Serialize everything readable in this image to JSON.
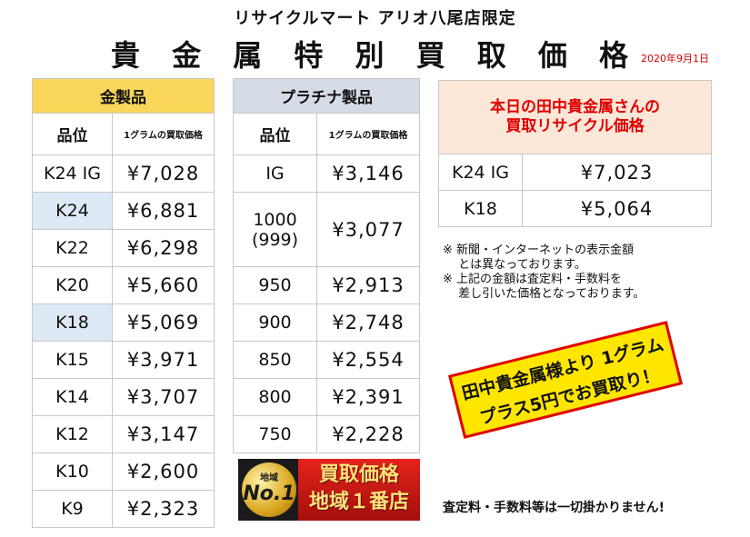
{
  "header": {
    "store_name": "リサイクルマート アリオ八尾店限定",
    "title": "貴 金 属 特 別 買 取 価 格",
    "date": "2020年9月1日"
  },
  "gold": {
    "category": "金製品",
    "col_grade": "品位",
    "col_price": "1グラムの買取価格",
    "rows": [
      {
        "grade": "K24 IG",
        "price": "¥7,028"
      },
      {
        "grade": "K24",
        "price": "¥6,881"
      },
      {
        "grade": "K22",
        "price": "¥6,298"
      },
      {
        "grade": "K20",
        "price": "¥5,660"
      },
      {
        "grade": "K18",
        "price": "¥5,069"
      },
      {
        "grade": "K15",
        "price": "¥3,971"
      },
      {
        "grade": "K14",
        "price": "¥3,707"
      },
      {
        "grade": "K12",
        "price": "¥3,147"
      },
      {
        "grade": "K10",
        "price": "¥2,600"
      },
      {
        "grade": "K9",
        "price": "¥2,323"
      }
    ],
    "highlight_color": "#dde9f5"
  },
  "platinum": {
    "category": "プラチナ製品",
    "col_grade": "品位",
    "col_price": "1グラムの買取価格",
    "rows": [
      {
        "grade": "IG",
        "price": "¥3,146"
      },
      {
        "grade": "1000",
        "grade_sub": "(999)",
        "price": "¥3,077"
      },
      {
        "grade": "950",
        "price": "¥2,913"
      },
      {
        "grade": "900",
        "price": "¥2,748"
      },
      {
        "grade": "850",
        "price": "¥2,554"
      },
      {
        "grade": "800",
        "price": "¥2,391"
      },
      {
        "grade": "750",
        "price": "¥2,228"
      }
    ]
  },
  "tanaka": {
    "title_line1": "本日の田中貴金属さんの",
    "title_line2": "買取リサイクル価格",
    "rows": [
      {
        "grade": "K24 IG",
        "price": "¥7,023"
      },
      {
        "grade": "K18",
        "price": "¥5,064"
      }
    ],
    "accent": "#e00000"
  },
  "notes": [
    "※ 新聞・インターネットの表示金額",
    "　 とは異なっております。",
    "※ 上記の金額は査定料・手数料を",
    "　 差し引いた価格となっております。"
  ],
  "promo": {
    "line1": "田中貴金属様より 1グラム",
    "line2": "プラス5円でお買取り！"
  },
  "banner": {
    "seal_top": "地域",
    "seal_no": "No.1",
    "line1": "買取価格",
    "line2": "地域１番店"
  },
  "footer": "査定料・手数料等は一切掛かりません!"
}
